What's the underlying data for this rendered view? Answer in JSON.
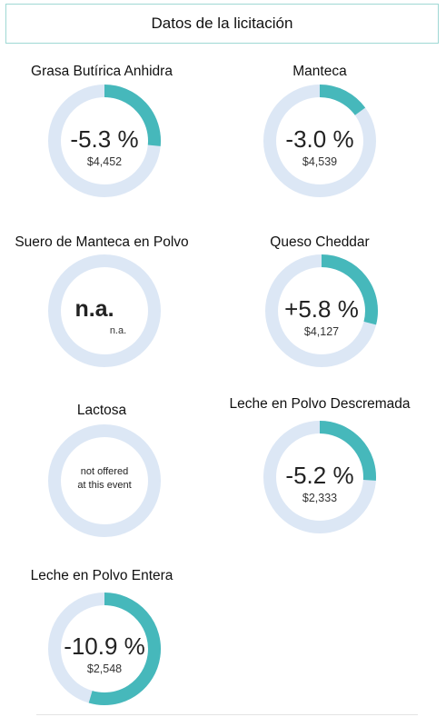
{
  "header": {
    "title": "Datos de la licitación"
  },
  "colors": {
    "track": "#dce7f5",
    "accent": "#46b8bb"
  },
  "chart_data": {
    "type": "donut-grid",
    "tiles": [
      {
        "name": "Grasa Butírica Anhidra",
        "change_pct": -5.3,
        "change_label": "-5.3 %",
        "price": "$4,452"
      },
      {
        "name": "Manteca",
        "change_pct": -3.0,
        "change_label": "-3.0 %",
        "price": "$4,539"
      },
      {
        "name": "Suero de Manteca en Polvo",
        "change_pct": null,
        "change_label": "n.a.",
        "price": "n.a."
      },
      {
        "name": "Queso Cheddar",
        "change_pct": 5.8,
        "change_label": "+5.8 %",
        "price": "$4,127"
      },
      {
        "name": "Lactosa",
        "change_pct": null,
        "change_label": "",
        "price": "",
        "note": [
          "not offered",
          "at this event"
        ]
      },
      {
        "name": "Leche en Polvo Descremada",
        "change_pct": -5.2,
        "change_label": "-5.2 %",
        "price": "$2,333"
      },
      {
        "name": "Leche en Polvo Entera",
        "change_pct": -10.9,
        "change_label": "-10.9 %",
        "price": "$2,548"
      }
    ]
  }
}
